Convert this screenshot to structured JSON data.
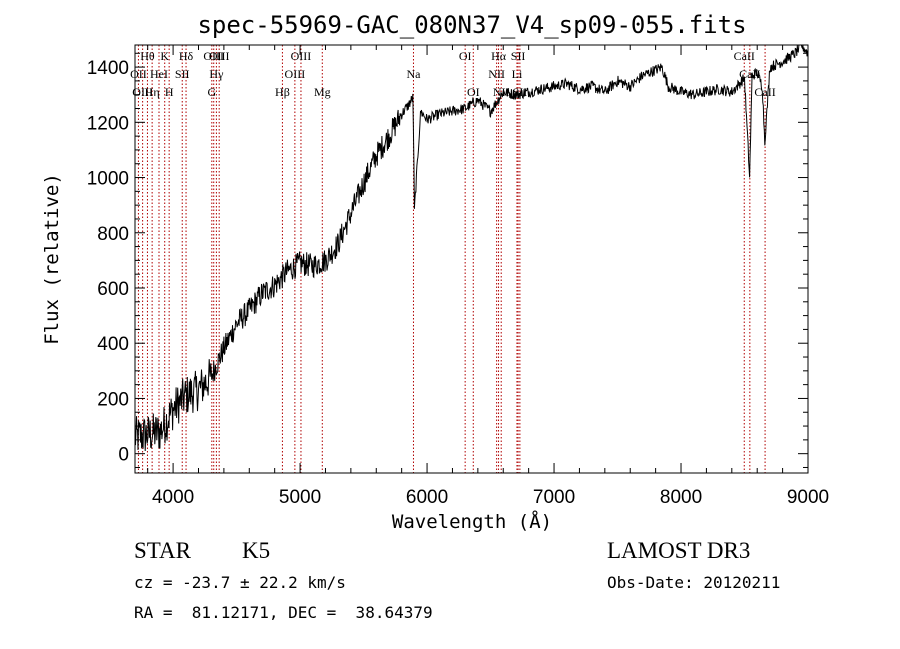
{
  "chart_data": {
    "type": "line",
    "title": "spec-55969-GAC_080N37_V4_sp09-055.fits",
    "xlabel": "Wavelength (Å)",
    "ylabel": "Flux (relative)",
    "xlim": [
      3700,
      9000
    ],
    "ylim": [
      -70,
      1480
    ],
    "xticks": [
      4000,
      5000,
      6000,
      7000,
      8000,
      9000
    ],
    "yticks": [
      0,
      200,
      400,
      600,
      800,
      1000,
      1200,
      1400
    ],
    "series": [
      {
        "name": "spectrum",
        "x": [
          3700,
          3800,
          3900,
          4000,
          4100,
          4200,
          4300,
          4400,
          4500,
          4600,
          4700,
          4800,
          4900,
          5000,
          5100,
          5200,
          5300,
          5400,
          5500,
          5600,
          5700,
          5800,
          5850,
          5890,
          5900,
          5950,
          6000,
          6100,
          6200,
          6300,
          6400,
          6500,
          6600,
          6700,
          6800,
          6900,
          7000,
          7100,
          7200,
          7300,
          7400,
          7500,
          7600,
          7700,
          7800,
          7850,
          7900,
          8000,
          8100,
          8200,
          8300,
          8400,
          8500,
          8540,
          8560,
          8600,
          8640,
          8660,
          8700,
          8800,
          8900,
          8950,
          9000
        ],
        "y": [
          60,
          70,
          80,
          160,
          210,
          230,
          280,
          380,
          470,
          520,
          580,
          610,
          660,
          690,
          680,
          700,
          760,
          870,
          980,
          1080,
          1150,
          1230,
          1260,
          1290,
          880,
          1240,
          1210,
          1230,
          1240,
          1250,
          1280,
          1240,
          1310,
          1300,
          1310,
          1320,
          1330,
          1340,
          1320,
          1330,
          1310,
          1350,
          1330,
          1370,
          1390,
          1400,
          1330,
          1310,
          1300,
          1310,
          1320,
          1310,
          1360,
          1000,
          1370,
          1380,
          1330,
          1130,
          1400,
          1420,
          1450,
          1480,
          1450
        ]
      }
    ],
    "spectral_lines": [
      {
        "label": "OII",
        "wavelength": 3727,
        "row": 1
      },
      {
        "label": "Hθ",
        "wavelength": 3798,
        "row": 0
      },
      {
        "label": "OIII",
        "wavelength": 3760,
        "row": 2
      },
      {
        "label": "Hη",
        "wavelength": 3835,
        "row": 2
      },
      {
        "label": "HeI",
        "wavelength": 3889,
        "row": 1
      },
      {
        "label": "K",
        "wavelength": 3934,
        "row": 0
      },
      {
        "label": "H",
        "wavelength": 3969,
        "row": 2
      },
      {
        "label": "SII",
        "wavelength": 4072,
        "row": 1
      },
      {
        "label": "Hδ",
        "wavelength": 4102,
        "row": 0
      },
      {
        "label": "G",
        "wavelength": 4305,
        "row": 2
      },
      {
        "label": "OIII",
        "wavelength": 4320,
        "row": 0
      },
      {
        "label": "Hγ",
        "wavelength": 4341,
        "row": 1
      },
      {
        "label": "OIII",
        "wavelength": 4363,
        "row": 0
      },
      {
        "label": "Hβ",
        "wavelength": 4861,
        "row": 2
      },
      {
        "label": "OIII",
        "wavelength": 4959,
        "row": 1
      },
      {
        "label": "OIII",
        "wavelength": 5007,
        "row": 0
      },
      {
        "label": "Mg",
        "wavelength": 5175,
        "row": 2
      },
      {
        "label": "Na",
        "wavelength": 5893,
        "row": 1
      },
      {
        "label": "OI",
        "wavelength": 6300,
        "row": 0
      },
      {
        "label": "OI",
        "wavelength": 6364,
        "row": 2
      },
      {
        "label": "NII",
        "wavelength": 6548,
        "row": 1
      },
      {
        "label": "Hα",
        "wavelength": 6563,
        "row": 0
      },
      {
        "label": "NII",
        "wavelength": 6584,
        "row": 2
      },
      {
        "label": "SII",
        "wavelength": 6717,
        "row": 0
      },
      {
        "label": "Li",
        "wavelength": 6708,
        "row": 1
      },
      {
        "label": "SII",
        "wavelength": 6731,
        "row": 2
      },
      {
        "label": "CaII",
        "wavelength": 8498,
        "row": 0
      },
      {
        "label": "CaII",
        "wavelength": 8542,
        "row": 1
      },
      {
        "label": "CaII",
        "wavelength": 8662,
        "row": 2
      }
    ]
  },
  "info": {
    "object_class": "STAR",
    "subclass": "K5",
    "survey": "LAMOST DR3",
    "redshift": "cz = -23.7 ± 22.2 km/s",
    "obs_date": "Obs-Date: 20120211",
    "coords": "RA =  81.12171, DEC =  38.64379"
  },
  "colors": {
    "line": "#000000",
    "marker_lines": "#b00000",
    "background": "#ffffff"
  }
}
